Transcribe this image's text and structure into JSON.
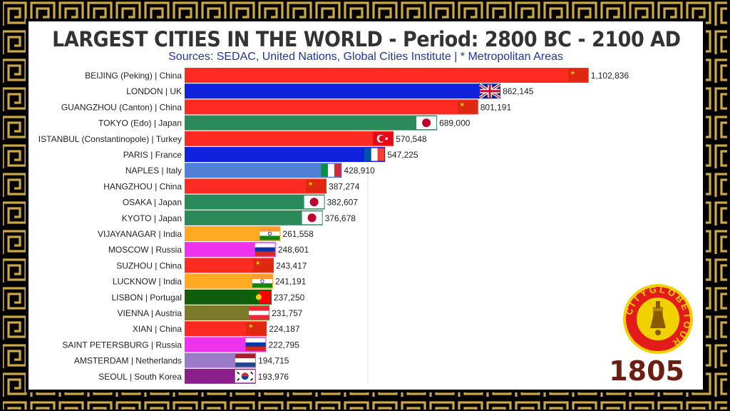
{
  "header": {
    "title": "LARGEST CITIES IN THE WORLD - Period: 2800 BC - 2100 AD",
    "subtitle": "Sources: SEDAC, United Nations, Global Cities Institute | * Metropolitan Areas"
  },
  "year": "1805",
  "logo": {
    "text": "CITYGLOBETOUR",
    "icon": "city-globe-tour-logo"
  },
  "colors": {
    "frame": "#000000",
    "meander": "#c9a64a",
    "panel": "#ffffff",
    "year": "#6b1e12"
  },
  "chart_data": {
    "type": "bar",
    "orientation": "horizontal",
    "xlim": [
      0,
      1150000
    ],
    "grid": false,
    "legend": "none",
    "bars": [
      {
        "label": "BEIJING (Peking) | China",
        "value": 1102836,
        "value_label": "1,102,836",
        "color": "#ff2a22",
        "flag": "cn"
      },
      {
        "label": "LONDON | UK",
        "value": 862145,
        "value_label": "862,145",
        "color": "#1122dd",
        "flag": "uk"
      },
      {
        "label": "GUANGZHOU (Canton) | China",
        "value": 801191,
        "value_label": "801,191",
        "color": "#ff2a22",
        "flag": "cn"
      },
      {
        "label": "TOKYO (Edo) | Japan",
        "value": 689000,
        "value_label": "689,000",
        "color": "#2a8a5a",
        "flag": "jp"
      },
      {
        "label": "ISTANBUL (Constantinopole) | Turkey",
        "value": 570548,
        "value_label": "570,548",
        "color": "#ff2a22",
        "flag": "tr"
      },
      {
        "label": "PARIS | France",
        "value": 547225,
        "value_label": "547,225",
        "color": "#1122dd",
        "flag": "fr"
      },
      {
        "label": "NAPLES | Italy",
        "value": 428910,
        "value_label": "428,910",
        "color": "#4f7fd6",
        "flag": "it"
      },
      {
        "label": "HANGZHOU | China",
        "value": 387274,
        "value_label": "387,274",
        "color": "#ff2a22",
        "flag": "cn"
      },
      {
        "label": "OSAKA | Japan",
        "value": 382607,
        "value_label": "382,607",
        "color": "#2a8a5a",
        "flag": "jp"
      },
      {
        "label": "KYOTO | Japan",
        "value": 376678,
        "value_label": "376,678",
        "color": "#2a8a5a",
        "flag": "jp"
      },
      {
        "label": "VIJAYANAGAR | India",
        "value": 261558,
        "value_label": "261,558",
        "color": "#ffaa22",
        "flag": "in"
      },
      {
        "label": "MOSCOW | Russia",
        "value": 248601,
        "value_label": "248,601",
        "color": "#ee33ee",
        "flag": "ru"
      },
      {
        "label": "SUZHOU | China",
        "value": 243417,
        "value_label": "243,417",
        "color": "#ff2a22",
        "flag": "cn"
      },
      {
        "label": "LUCKNOW | India",
        "value": 241191,
        "value_label": "241,191",
        "color": "#ffaa22",
        "flag": "in"
      },
      {
        "label": "LISBON | Portugal",
        "value": 237250,
        "value_label": "237,250",
        "color": "#0e5e0e",
        "flag": "pt"
      },
      {
        "label": "VIENNA | Austria",
        "value": 231757,
        "value_label": "231,757",
        "color": "#7a7a2a",
        "flag": "at"
      },
      {
        "label": "XIAN | China",
        "value": 224187,
        "value_label": "224,187",
        "color": "#ff2a22",
        "flag": "cn"
      },
      {
        "label": "SAINT PETERSBURG | Russia",
        "value": 222795,
        "value_label": "222,795",
        "color": "#ee33ee",
        "flag": "ru"
      },
      {
        "label": "AMSTERDAM | Netherlands",
        "value": 194715,
        "value_label": "194,715",
        "color": "#9b7ac8",
        "flag": "nl"
      },
      {
        "label": "SEOUL | South Korea",
        "value": 193976,
        "value_label": "193,976",
        "color": "#8a1e8a",
        "flag": "kr"
      }
    ]
  }
}
